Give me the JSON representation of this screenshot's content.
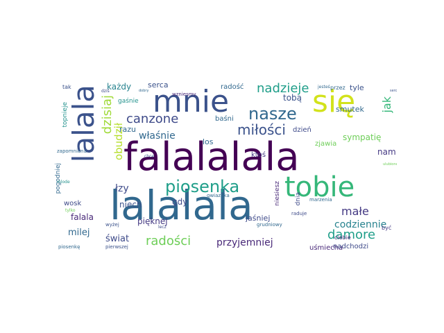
{
  "word_cloud": {
    "words": [
      "falalalala",
      "lalalala",
      "mnie",
      "się",
      "lalala",
      "tobie",
      "piosenka",
      "nasze",
      "miłości",
      "canzone",
      "dzisiaj",
      "nadzieje",
      "damore",
      "radości",
      "małe",
      "właśnie",
      "przyjemniej",
      "codziennie",
      "każdy",
      "jak",
      "obudził",
      "sympatię",
      "smutek",
      "łzy",
      "milej",
      "świat",
      "niech",
      "gdy",
      "falala",
      "serca",
      "tobą",
      "nam",
      "los",
      "razu",
      "ktoś",
      "dzień",
      "zjawia",
      "jaśniej",
      "pięknej",
      "wosk",
      "uśmiecha",
      "nadchodzi",
      "radość",
      "baśni",
      "gaśnie",
      "topnieje",
      "pogodniej",
      "niesiesz",
      "dnia",
      "tyle",
      "przez",
      "tak",
      "wzniesmy",
      "zapomniana",
      "piosenkę",
      "pierwszej",
      "wyżej",
      "gwiazdka",
      "grudniowy",
      "raduje",
      "ciebie",
      "być",
      "marzenia",
      "jesteś",
      "chce",
      "lecz",
      "mlode",
      "tylko",
      "dziś",
      "dobry",
      "serce",
      "ulubione"
    ]
  }
}
